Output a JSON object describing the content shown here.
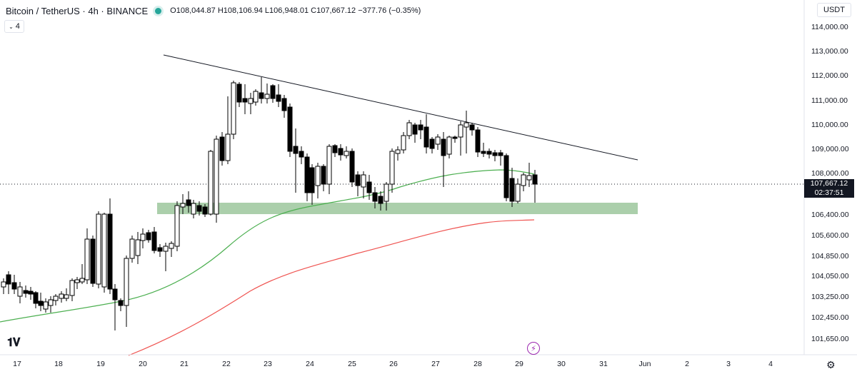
{
  "header": {
    "symbol": "Bitcoin / TetherUS · 4h · BINANCE",
    "open": "O108,044.87",
    "high": "H108,106.94",
    "low": "L106,948.01",
    "close": "C107,667.12",
    "change": "−377.76 (−0.35%)"
  },
  "indicators_toggle": {
    "count": "4"
  },
  "currency": "USDT",
  "price_axis": {
    "labels": [
      "114,000.00",
      "113,000.00",
      "112,000.00",
      "111,000.00",
      "110,000.00",
      "109,000.00",
      "108,000.00",
      "106,400.00",
      "105,600.00",
      "104,850.00",
      "104,050.00",
      "103,250.00",
      "102,450.00",
      "101,650.00"
    ]
  },
  "current_price": {
    "value": "107,667.12",
    "countdown": "02:37:51"
  },
  "time_axis": {
    "labels": [
      "17",
      "18",
      "19",
      "20",
      "21",
      "22",
      "23",
      "24",
      "25",
      "26",
      "27",
      "28",
      "29",
      "30",
      "31",
      "Jun",
      "2",
      "3",
      "4"
    ]
  },
  "colors": {
    "up": "#ffffff",
    "down": "#000000",
    "ema_fast": "#4caf50",
    "ema_slow": "#ef5350",
    "zone": "#8fbf8f",
    "trendline": "#131722"
  },
  "icons": {
    "logo": "tradingview-logo-icon",
    "bolt": "lightning-icon",
    "settings": "gear-icon"
  }
}
